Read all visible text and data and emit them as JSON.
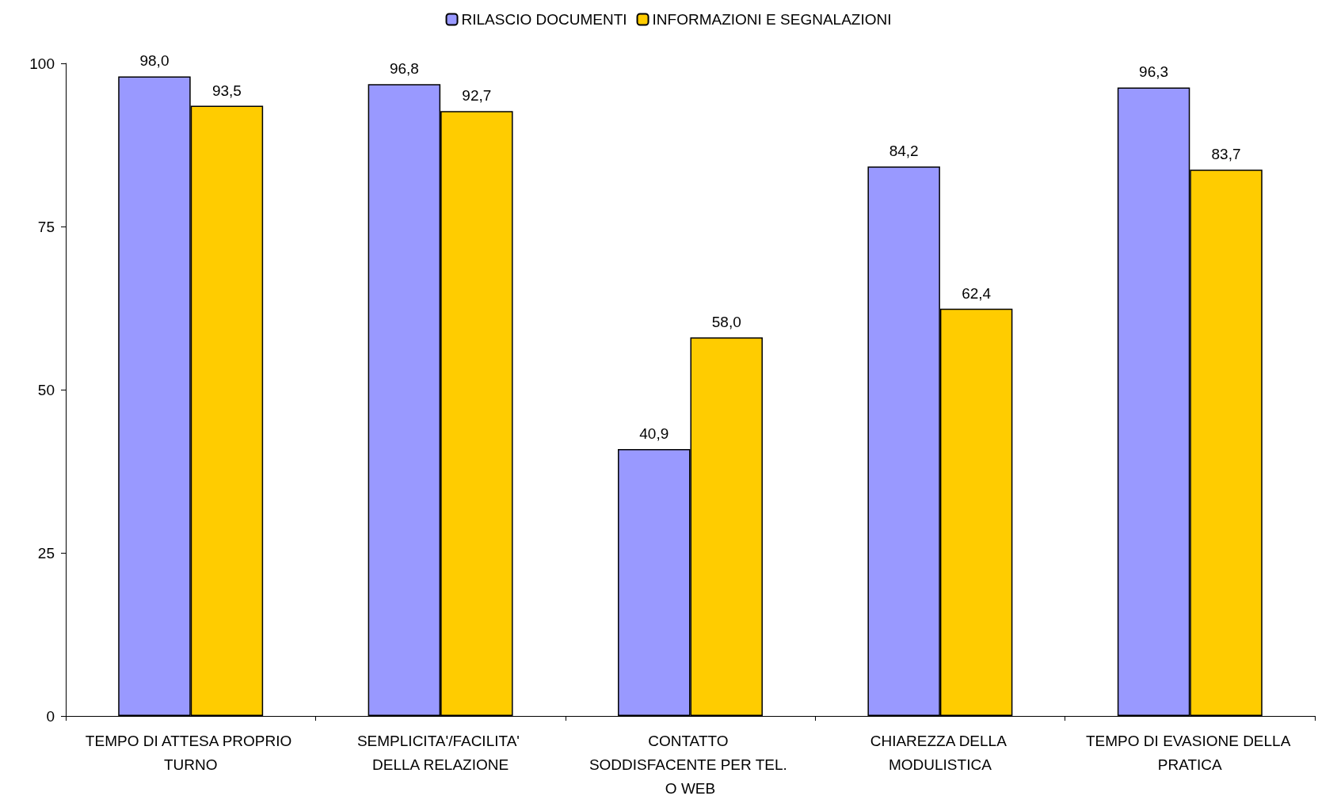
{
  "chart_data": {
    "type": "bar",
    "categories": [
      "TEMPO DI ATTESA PROPRIO TURNO",
      "SEMPLICITA'/FACILITA' DELLA RELAZIONE",
      "CONTATTO SODDISFACENTE PER TEL. O WEB",
      "CHIAREZZA DELLA MODULISTICA",
      "TEMPO DI EVASIONE DELLA PRATICA"
    ],
    "series": [
      {
        "name": "RILASCIO DOCUMENTI",
        "color": "#9999ff",
        "values": [
          98.0,
          96.8,
          40.9,
          84.2,
          96.3
        ],
        "value_labels": [
          "98,0",
          "96,8",
          "40,9",
          "84,2",
          "96,3"
        ]
      },
      {
        "name": "INFORMAZIONI E SEGNALAZIONI",
        "color": "#ffcc00",
        "values": [
          93.5,
          92.7,
          58.0,
          62.4,
          83.7
        ],
        "value_labels": [
          "93,5",
          "92,7",
          "58,0",
          "62,4",
          "83,7"
        ]
      }
    ],
    "ylim": [
      0,
      100
    ],
    "yticks": [
      0,
      25,
      50,
      75,
      100
    ],
    "grid": false,
    "legend": "top"
  }
}
